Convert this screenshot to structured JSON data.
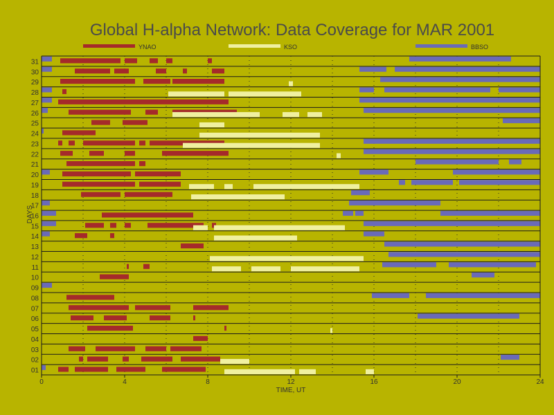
{
  "chart_data": {
    "type": "timeline",
    "title": "Global H-alpha Network: Data Coverage for MAR 2001",
    "xlabel": "TIME, UT",
    "ylabel": "DAYS",
    "xlim": [
      0,
      24
    ],
    "ylim": [
      1,
      31
    ],
    "x_ticks": [
      "0",
      "4",
      "8",
      "12",
      "16",
      "20",
      "24"
    ],
    "y_ticks": [
      "01",
      "02",
      "03",
      "04",
      "05",
      "06",
      "07",
      "08",
      "09",
      "10",
      "11",
      "12",
      "13",
      "14",
      "15",
      "16",
      "17",
      "18",
      "19",
      "20",
      "21",
      "22",
      "23",
      "24",
      "25",
      "26",
      "27",
      "28",
      "29",
      "30",
      "31"
    ],
    "grid": true,
    "legend_position": "top",
    "series": [
      {
        "name": "YNAO",
        "color": "#a52a2a",
        "intervals": [
          {
            "day": 31,
            "spans": [
              [
                0.9,
                3.8
              ],
              [
                4.0,
                4.6
              ],
              [
                5.2,
                5.6
              ],
              [
                6.0,
                6.3
              ],
              [
                8.0,
                8.2
              ]
            ]
          },
          {
            "day": 30,
            "spans": [
              [
                1.6,
                3.3
              ],
              [
                3.5,
                4.2
              ],
              [
                5.5,
                6.0
              ],
              [
                6.8,
                7.0
              ],
              [
                8.2,
                8.8
              ]
            ]
          },
          {
            "day": 29,
            "spans": [
              [
                0.9,
                4.5
              ],
              [
                4.9,
                6.2
              ],
              [
                6.3,
                8.8
              ]
            ]
          },
          {
            "day": 28,
            "spans": [
              [
                1.0,
                1.2
              ]
            ]
          },
          {
            "day": 27,
            "spans": [
              [
                0.8,
                9.0
              ]
            ]
          },
          {
            "day": 26,
            "spans": [
              [
                1.3,
                4.3
              ],
              [
                5.0,
                5.6
              ],
              [
                6.3,
                9.4
              ]
            ]
          },
          {
            "day": 25,
            "spans": [
              [
                2.4,
                3.3
              ],
              [
                3.9,
                5.1
              ]
            ]
          },
          {
            "day": 24,
            "spans": [
              [
                1.0,
                2.6
              ]
            ]
          },
          {
            "day": 23,
            "spans": [
              [
                0.8,
                1.0
              ],
              [
                1.3,
                1.6
              ],
              [
                2.0,
                4.5
              ],
              [
                4.7,
                5.0
              ],
              [
                5.2,
                8.8
              ]
            ]
          },
          {
            "day": 22,
            "spans": [
              [
                0.9,
                1.5
              ],
              [
                2.3,
                3.0
              ],
              [
                4.0,
                4.5
              ],
              [
                5.8,
                9.0
              ]
            ]
          },
          {
            "day": 21,
            "spans": [
              [
                1.2,
                4.5
              ],
              [
                4.7,
                5.0
              ]
            ]
          },
          {
            "day": 20,
            "spans": [
              [
                1.0,
                4.3
              ],
              [
                4.5,
                6.7
              ]
            ]
          },
          {
            "day": 19,
            "spans": [
              [
                1.0,
                4.5
              ],
              [
                4.7,
                6.7
              ]
            ]
          },
          {
            "day": 18,
            "spans": [
              [
                1.9,
                3.8
              ],
              [
                4.0,
                6.3
              ]
            ]
          },
          {
            "day": 17,
            "spans": []
          },
          {
            "day": 16,
            "spans": [
              [
                2.9,
                7.3
              ]
            ]
          },
          {
            "day": 15,
            "spans": [
              [
                2.1,
                3.0
              ],
              [
                3.3,
                3.6
              ],
              [
                4.0,
                4.3
              ],
              [
                5.1,
                7.8
              ],
              [
                8.2,
                8.4
              ]
            ]
          },
          {
            "day": 14,
            "spans": [
              [
                1.6,
                2.2
              ],
              [
                3.3,
                3.5
              ]
            ]
          },
          {
            "day": 13,
            "spans": [
              [
                6.7,
                7.8
              ]
            ]
          },
          {
            "day": 12,
            "spans": []
          },
          {
            "day": 11,
            "spans": [
              [
                4.1,
                4.2
              ],
              [
                4.9,
                5.2
              ]
            ]
          },
          {
            "day": 10,
            "spans": [
              [
                2.8,
                4.2
              ]
            ]
          },
          {
            "day": 9,
            "spans": []
          },
          {
            "day": 8,
            "spans": [
              [
                1.2,
                3.5
              ]
            ]
          },
          {
            "day": 7,
            "spans": [
              [
                1.3,
                4.2
              ],
              [
                4.5,
                6.2
              ],
              [
                7.3,
                9.0
              ]
            ]
          },
          {
            "day": 6,
            "spans": [
              [
                1.4,
                2.5
              ],
              [
                3.0,
                4.1
              ],
              [
                5.2,
                6.2
              ],
              [
                7.3,
                7.4
              ]
            ]
          },
          {
            "day": 5,
            "spans": [
              [
                2.2,
                4.4
              ],
              [
                8.8,
                8.9
              ]
            ]
          },
          {
            "day": 4,
            "spans": [
              [
                7.3,
                8.0
              ]
            ]
          },
          {
            "day": 3,
            "spans": [
              [
                1.3,
                2.1
              ],
              [
                2.6,
                4.5
              ],
              [
                5.0,
                6.0
              ],
              [
                6.2,
                7.7
              ]
            ]
          },
          {
            "day": 2,
            "spans": [
              [
                1.8,
                2.0
              ],
              [
                2.2,
                3.2
              ],
              [
                3.9,
                4.2
              ],
              [
                4.8,
                6.3
              ],
              [
                6.7,
                8.6
              ]
            ]
          },
          {
            "day": 1,
            "spans": [
              [
                0.8,
                1.3
              ],
              [
                1.6,
                3.2
              ],
              [
                3.6,
                5.0
              ],
              [
                5.8,
                7.9
              ]
            ]
          }
        ]
      },
      {
        "name": "KSO",
        "color": "#f0f0a0",
        "intervals": [
          {
            "day": 29,
            "spans": [
              [
                11.9,
                12.1
              ]
            ]
          },
          {
            "day": 28,
            "spans": [
              [
                6.1,
                8.8
              ],
              [
                9.0,
                12.5
              ]
            ]
          },
          {
            "day": 26,
            "spans": [
              [
                6.3,
                10.5
              ],
              [
                11.6,
                12.4
              ],
              [
                12.8,
                13.5
              ]
            ]
          },
          {
            "day": 25,
            "spans": [
              [
                7.6,
                8.8
              ]
            ]
          },
          {
            "day": 24,
            "spans": [
              [
                7.6,
                13.4
              ]
            ]
          },
          {
            "day": 23,
            "spans": [
              [
                6.8,
                13.4
              ]
            ]
          },
          {
            "day": 22,
            "spans": [
              [
                14.2,
                14.4
              ]
            ]
          },
          {
            "day": 19,
            "spans": [
              [
                7.1,
                8.3
              ],
              [
                8.8,
                9.2
              ],
              [
                10.2,
                15.3
              ]
            ]
          },
          {
            "day": 18,
            "spans": [
              [
                7.2,
                11.7
              ]
            ]
          },
          {
            "day": 15,
            "spans": [
              [
                7.3,
                8.0
              ],
              [
                8.3,
                14.6
              ]
            ]
          },
          {
            "day": 14,
            "spans": [
              [
                8.3,
                12.3
              ]
            ]
          },
          {
            "day": 12,
            "spans": [
              [
                8.1,
                15.5
              ]
            ]
          },
          {
            "day": 11,
            "spans": [
              [
                8.2,
                9.6
              ],
              [
                10.1,
                11.5
              ],
              [
                12.0,
                15.3
              ]
            ]
          },
          {
            "day": 5,
            "spans": [
              [
                13.9,
                14.0
              ]
            ]
          },
          {
            "day": 2,
            "spans": [
              [
                8.6,
                10.0
              ]
            ]
          },
          {
            "day": 1,
            "spans": [
              [
                8.8,
                12.2
              ],
              [
                12.4,
                13.2
              ],
              [
                15.6,
                16.0
              ]
            ]
          }
        ]
      },
      {
        "name": "BBSO",
        "color": "#6a6ab8",
        "intervals": [
          {
            "day": 31,
            "spans": [
              [
                0.0,
                0.5
              ],
              [
                17.7,
                22.6
              ]
            ]
          },
          {
            "day": 30,
            "spans": [
              [
                0.0,
                0.5
              ],
              [
                15.3,
                16.6
              ],
              [
                17.0,
                24.0
              ]
            ]
          },
          {
            "day": 29,
            "spans": [
              [
                16.3,
                24.0
              ]
            ]
          },
          {
            "day": 28,
            "spans": [
              [
                0.0,
                0.5
              ],
              [
                15.3,
                16.0
              ],
              [
                16.5,
                21.6
              ],
              [
                22.0,
                24.0
              ]
            ]
          },
          {
            "day": 27,
            "spans": [
              [
                0.0,
                0.5
              ],
              [
                15.3,
                24.0
              ]
            ]
          },
          {
            "day": 26,
            "spans": [
              [
                0.0,
                0.3
              ],
              [
                15.5,
                24.0
              ]
            ]
          },
          {
            "day": 25,
            "spans": [
              [
                22.2,
                24.0
              ]
            ]
          },
          {
            "day": 24,
            "spans": [
              [
                0.0,
                0.1
              ]
            ]
          },
          {
            "day": 23,
            "spans": [
              [
                15.5,
                24.0
              ]
            ]
          },
          {
            "day": 22,
            "spans": [
              [
                15.5,
                24.0
              ]
            ]
          },
          {
            "day": 21,
            "spans": [
              [
                18.0,
                22.0
              ],
              [
                22.5,
                23.1
              ]
            ]
          },
          {
            "day": 20,
            "spans": [
              [
                0.0,
                0.4
              ],
              [
                15.3,
                16.7
              ],
              [
                19.8,
                24.0
              ]
            ]
          },
          {
            "day": 19,
            "spans": [
              [
                17.2,
                17.5
              ],
              [
                17.8,
                19.8
              ],
              [
                20.1,
                24.0
              ]
            ]
          },
          {
            "day": 18,
            "spans": [
              [
                14.9,
                15.8
              ]
            ]
          },
          {
            "day": 17,
            "spans": [
              [
                0.0,
                0.4
              ],
              [
                14.8,
                19.2
              ]
            ]
          },
          {
            "day": 16,
            "spans": [
              [
                0.0,
                0.7
              ],
              [
                14.5,
                15.0
              ],
              [
                15.1,
                15.5
              ],
              [
                19.2,
                24.0
              ]
            ]
          },
          {
            "day": 15,
            "spans": [
              [
                0.0,
                0.7
              ],
              [
                15.5,
                24.0
              ]
            ]
          },
          {
            "day": 14,
            "spans": [
              [
                0.0,
                0.4
              ],
              [
                15.5,
                16.5
              ]
            ]
          },
          {
            "day": 13,
            "spans": [
              [
                16.5,
                24.0
              ]
            ]
          },
          {
            "day": 12,
            "spans": [
              [
                16.7,
                24.0
              ]
            ]
          },
          {
            "day": 11,
            "spans": [
              [
                16.4,
                19.0
              ],
              [
                19.6,
                23.8
              ]
            ]
          },
          {
            "day": 10,
            "spans": [
              [
                20.7,
                21.8
              ]
            ]
          },
          {
            "day": 9,
            "spans": [
              [
                0.0,
                0.5
              ]
            ]
          },
          {
            "day": 8,
            "spans": [
              [
                15.9,
                17.7
              ],
              [
                18.5,
                24.0
              ]
            ]
          },
          {
            "day": 6,
            "spans": [
              [
                18.1,
                23.0
              ]
            ]
          },
          {
            "day": 2,
            "spans": [
              [
                22.1,
                23.0
              ]
            ]
          },
          {
            "day": 1,
            "spans": [
              [
                0.0,
                0.2
              ]
            ]
          }
        ]
      }
    ]
  }
}
